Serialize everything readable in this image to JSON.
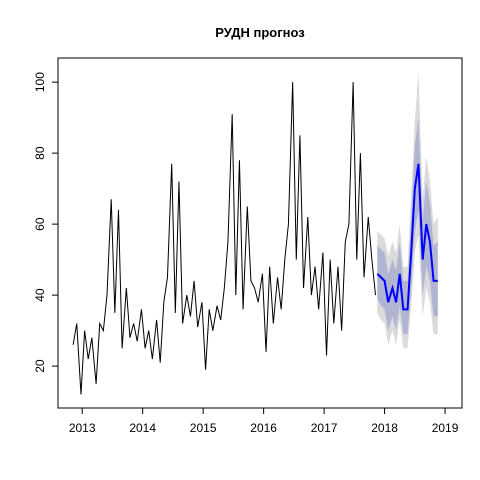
{
  "chart_data": {
    "type": "line",
    "title": "РУДН прогноз",
    "x": [
      2012.85,
      2012.91,
      2012.98,
      2013.04,
      2013.1,
      2013.16,
      2013.23,
      2013.29,
      2013.35,
      2013.41,
      2013.48,
      2013.54,
      2013.6,
      2013.66,
      2013.73,
      2013.79,
      2013.85,
      2013.91,
      2013.98,
      2014.04,
      2014.1,
      2014.16,
      2014.23,
      2014.29,
      2014.35,
      2014.41,
      2014.48,
      2014.54,
      2014.6,
      2014.66,
      2014.73,
      2014.79,
      2014.85,
      2014.91,
      2014.98,
      2015.04,
      2015.1,
      2015.16,
      2015.23,
      2015.29,
      2015.35,
      2015.41,
      2015.48,
      2015.54,
      2015.6,
      2015.66,
      2015.73,
      2015.79,
      2015.85,
      2015.91,
      2015.98,
      2016.04,
      2016.1,
      2016.16,
      2016.23,
      2016.29,
      2016.35,
      2016.41,
      2016.48,
      2016.54,
      2016.6,
      2016.66,
      2016.73,
      2016.79,
      2016.85,
      2016.91,
      2016.98,
      2017.04,
      2017.1,
      2017.16,
      2017.23,
      2017.29,
      2017.35,
      2017.41,
      2017.48,
      2017.54,
      2017.6,
      2017.66,
      2017.73,
      2017.79,
      2017.85
    ],
    "values": [
      26,
      32,
      12,
      30,
      22,
      28,
      15,
      32,
      30,
      40,
      67,
      35,
      64,
      25,
      42,
      28,
      32,
      27,
      36,
      25,
      30,
      22,
      33,
      21,
      38,
      45,
      77,
      35,
      72,
      32,
      40,
      34,
      44,
      31,
      38,
      19,
      36,
      30,
      37,
      33,
      42,
      55,
      91,
      40,
      78,
      36,
      65,
      44,
      42,
      38,
      46,
      24,
      48,
      32,
      45,
      36,
      50,
      60,
      100,
      50,
      85,
      42,
      62,
      40,
      48,
      36,
      52,
      23,
      50,
      32,
      48,
      30,
      55,
      60,
      100,
      50,
      80,
      45,
      62,
      50,
      40
    ],
    "color": "#000000",
    "forecast": {
      "x": [
        2017.88,
        2017.94,
        2018.0,
        2018.06,
        2018.13,
        2018.19,
        2018.25,
        2018.31,
        2018.38,
        2018.44,
        2018.5,
        2018.56,
        2018.63,
        2018.69,
        2018.75,
        2018.81,
        2018.88
      ],
      "mean": [
        46,
        45,
        44,
        38,
        42,
        38,
        46,
        36,
        36,
        52,
        70,
        77,
        50,
        60,
        55,
        44,
        44
      ],
      "lo80": [
        39,
        37,
        36,
        30,
        34,
        30,
        37,
        29,
        29,
        42,
        58,
        64,
        40,
        48,
        44,
        34,
        34
      ],
      "hi80": [
        54,
        53,
        52,
        46,
        50,
        47,
        55,
        44,
        44,
        62,
        82,
        90,
        61,
        72,
        66,
        54,
        55
      ],
      "lo95": [
        35,
        33,
        32,
        26,
        30,
        26,
        33,
        25,
        25,
        37,
        52,
        57,
        34,
        42,
        38,
        29,
        29
      ],
      "hi95": [
        58,
        57,
        56,
        51,
        55,
        52,
        60,
        48,
        48,
        68,
        89,
        103,
        67,
        79,
        72,
        60,
        62
      ],
      "color": "#0000ff",
      "band80_color": "#b1b5d1",
      "band95_color": "#dbdbdb"
    },
    "xlim": [
      2012.6,
      2019.28
    ],
    "ylim": [
      8.2,
      106.8
    ],
    "xticks": [
      2013,
      2014,
      2015,
      2016,
      2017,
      2018,
      2019
    ],
    "yticks": [
      20,
      40,
      60,
      80,
      100
    ]
  }
}
